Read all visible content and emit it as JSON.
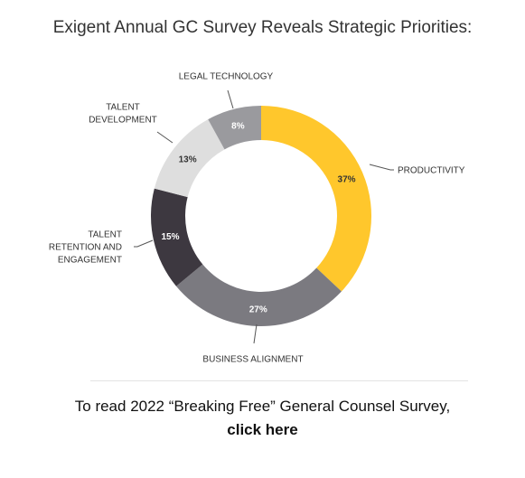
{
  "heading": "Exigent Annual GC Survey Reveals Strategic Priorities:",
  "cta": {
    "text": "To read 2022 “Breaking Free” General Counsel Survey,",
    "link_label": "click here"
  },
  "chart_data": {
    "type": "pie",
    "donut": true,
    "title": "",
    "slices": [
      {
        "label": "PRODUCTIVITY",
        "label_lines": [
          "PRODUCTIVITY"
        ],
        "value": 37,
        "value_label": "37%",
        "color": "#ffc72c",
        "text_color": "#333333"
      },
      {
        "label": "BUSINESS ALIGNMENT",
        "label_lines": [
          "BUSINESS ALIGNMENT"
        ],
        "value": 27,
        "value_label": "27%",
        "color": "#7b7a80",
        "text_color": "#ffffff"
      },
      {
        "label": "TALENT RETENTION AND ENGAGEMENT",
        "label_lines": [
          "TALENT",
          "RETENTION AND",
          "ENGAGEMENT"
        ],
        "value": 15,
        "value_label": "15%",
        "color": "#3d3840",
        "text_color": "#ffffff"
      },
      {
        "label": "TALENT DEVELOPMENT",
        "label_lines": [
          "TALENT",
          "DEVELOPMENT"
        ],
        "value": 13,
        "value_label": "13%",
        "color": "#dedede",
        "text_color": "#333333"
      },
      {
        "label": "LEGAL TECHNOLOGY",
        "label_lines": [
          "LEGAL TECHNOLOGY"
        ],
        "value": 8,
        "value_label": "8%",
        "color": "#9a9a9e",
        "text_color": "#ffffff"
      }
    ]
  }
}
